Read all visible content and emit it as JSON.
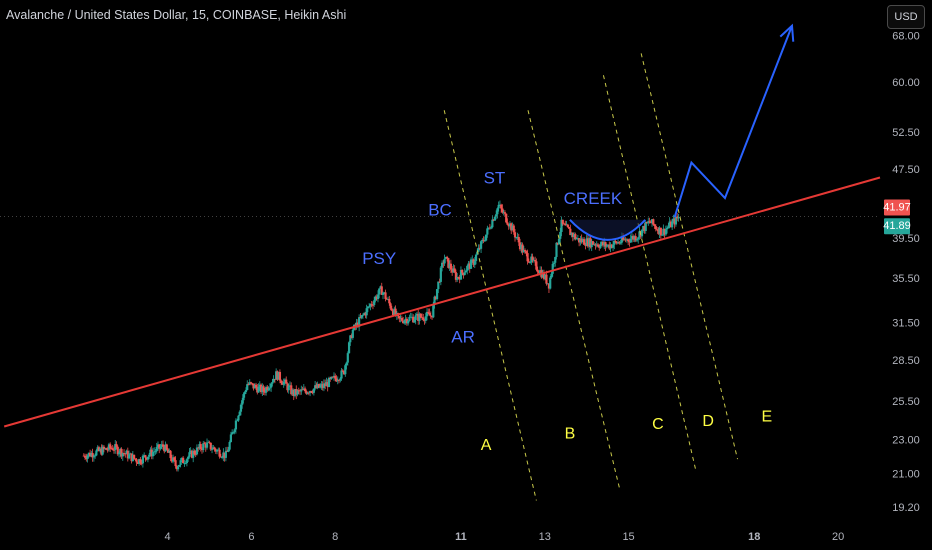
{
  "header": {
    "title": "Avalanche / United States Dollar, 15, COINBASE, Heikin Ashi",
    "currency_label": "USD"
  },
  "colors": {
    "background": "#000000",
    "up_candle": "#26a69a",
    "down_candle": "#ef5350",
    "trendline": "#e53935",
    "projection": "#2962ff",
    "wyckoff_label": "#4c6fff",
    "channel_line": "#c8c84a",
    "channel_label": "#ffff44"
  },
  "chart_data": {
    "type": "candlestick",
    "scale": "log",
    "ylim": [
      18.6,
      75
    ],
    "y_ticks": [
      "68.00",
      "60.00",
      "52.50",
      "47.50",
      "41.97",
      "41.89",
      "39.50",
      "35.50",
      "31.50",
      "28.50",
      "25.50",
      "23.00",
      "21.00",
      "19.20"
    ],
    "x_ticks": [
      "4",
      "6",
      "8",
      "11",
      "13",
      "15",
      "18",
      "20"
    ],
    "price_badges": [
      {
        "value": "41.97",
        "color": "#ef5350"
      },
      {
        "value": "41.89",
        "color": "#26a69a"
      }
    ],
    "price_path_anchors": [
      {
        "x": 2.0,
        "y": 22.1
      },
      {
        "x": 2.7,
        "y": 22.6
      },
      {
        "x": 3.3,
        "y": 21.8
      },
      {
        "x": 3.9,
        "y": 22.7
      },
      {
        "x": 4.2,
        "y": 21.5
      },
      {
        "x": 4.9,
        "y": 22.8
      },
      {
        "x": 5.4,
        "y": 22.1
      },
      {
        "x": 5.9,
        "y": 26.8
      },
      {
        "x": 6.3,
        "y": 26.3
      },
      {
        "x": 6.6,
        "y": 27.5
      },
      {
        "x": 7.0,
        "y": 26.1
      },
      {
        "x": 7.7,
        "y": 26.6
      },
      {
        "x": 8.2,
        "y": 27.6
      },
      {
        "x": 8.4,
        "y": 30.8
      },
      {
        "x": 9.1,
        "y": 34.5
      },
      {
        "x": 9.5,
        "y": 31.8
      },
      {
        "x": 10.3,
        "y": 32.2
      },
      {
        "x": 10.6,
        "y": 37.6
      },
      {
        "x": 10.9,
        "y": 35.6
      },
      {
        "x": 11.3,
        "y": 37.2
      },
      {
        "x": 11.6,
        "y": 40.0
      },
      {
        "x": 11.9,
        "y": 43.2
      },
      {
        "x": 12.2,
        "y": 40.8
      },
      {
        "x": 12.5,
        "y": 38.1
      },
      {
        "x": 12.9,
        "y": 36.2
      },
      {
        "x": 13.1,
        "y": 35.0
      },
      {
        "x": 13.4,
        "y": 41.1
      },
      {
        "x": 13.8,
        "y": 39.4
      },
      {
        "x": 14.5,
        "y": 38.8
      },
      {
        "x": 15.2,
        "y": 39.8
      },
      {
        "x": 15.5,
        "y": 41.4
      },
      {
        "x": 15.8,
        "y": 40.2
      },
      {
        "x": 16.2,
        "y": 41.9
      }
    ],
    "trendline": [
      {
        "x": 0.1,
        "y": 23.9
      },
      {
        "x": 21.0,
        "y": 46.6
      }
    ],
    "projection_path": [
      {
        "x": 16.1,
        "y": 41.9
      },
      {
        "x": 16.5,
        "y": 48.5
      },
      {
        "x": 17.3,
        "y": 44.1
      },
      {
        "x": 18.9,
        "y": 70.0
      }
    ],
    "creek_curve": [
      {
        "x": 13.6,
        "y": 41.6
      },
      {
        "x": 14.5,
        "y": 39.2
      },
      {
        "x": 15.4,
        "y": 41.6
      }
    ],
    "channel_lines": [
      {
        "from": {
          "x": 10.6,
          "y": 55.8
        },
        "to": {
          "x": 12.8,
          "y": 19.6
        }
      },
      {
        "from": {
          "x": 12.6,
          "y": 55.8
        },
        "to": {
          "x": 14.8,
          "y": 20.1
        }
      },
      {
        "from": {
          "x": 14.4,
          "y": 61.3
        },
        "to": {
          "x": 16.6,
          "y": 21.3
        }
      },
      {
        "from": {
          "x": 15.3,
          "y": 65.0
        },
        "to": {
          "x": 17.6,
          "y": 21.9
        }
      }
    ],
    "annotations": [
      {
        "text": "PSY",
        "x": 9.05,
        "y": 37.4,
        "group": "wyckoff"
      },
      {
        "text": "BC",
        "x": 10.5,
        "y": 42.6,
        "group": "wyckoff"
      },
      {
        "text": "ST",
        "x": 11.8,
        "y": 46.4,
        "group": "wyckoff"
      },
      {
        "text": "AR",
        "x": 11.05,
        "y": 30.3,
        "group": "wyckoff"
      },
      {
        "text": "CREEK",
        "x": 14.15,
        "y": 43.9,
        "group": "wyckoff"
      },
      {
        "text": "A",
        "x": 11.6,
        "y": 22.7,
        "group": "channel"
      },
      {
        "text": "B",
        "x": 13.6,
        "y": 23.4,
        "group": "channel"
      },
      {
        "text": "C",
        "x": 15.7,
        "y": 24.0,
        "group": "channel"
      },
      {
        "text": "D",
        "x": 16.9,
        "y": 24.2,
        "group": "channel"
      },
      {
        "text": "E",
        "x": 18.3,
        "y": 24.5,
        "group": "channel"
      }
    ]
  }
}
